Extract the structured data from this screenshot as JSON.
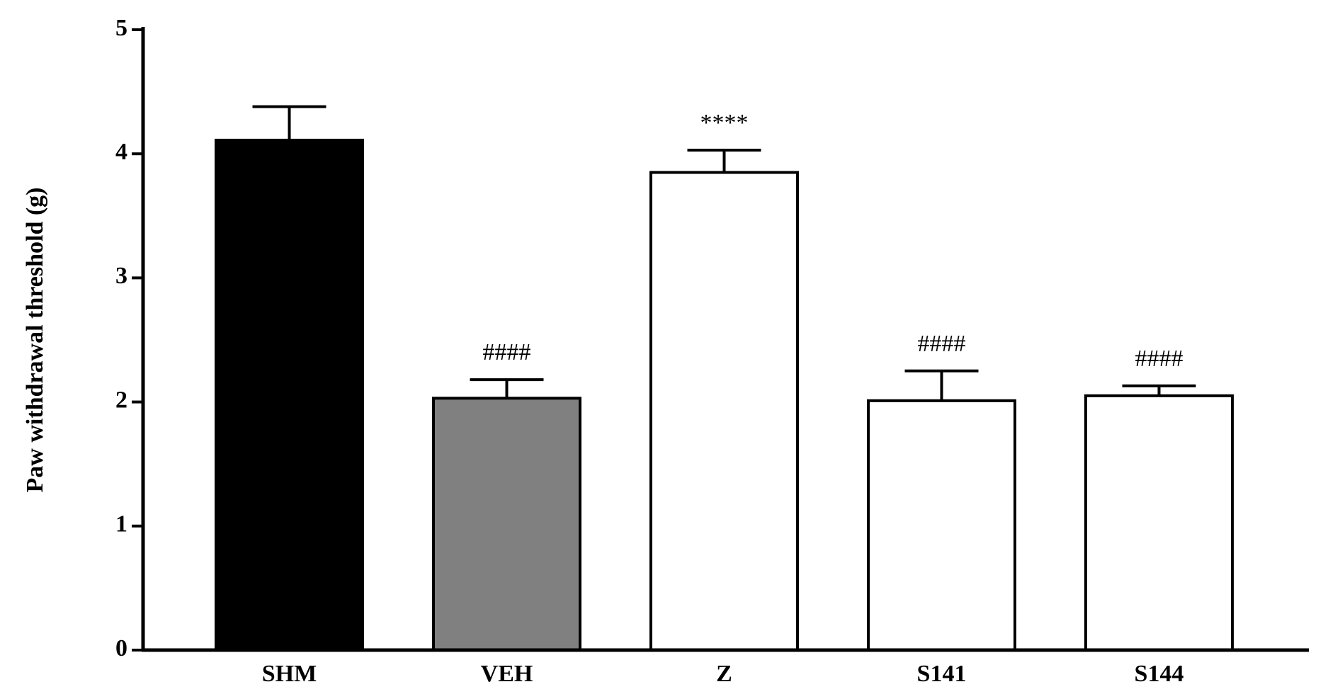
{
  "chart_data": {
    "type": "bar",
    "categories": [
      "SHM",
      "VEH",
      "Z",
      "S141",
      "S144"
    ],
    "values": [
      4.11,
      2.03,
      3.85,
      2.01,
      2.05
    ],
    "errors": [
      0.27,
      0.15,
      0.18,
      0.24,
      0.08
    ],
    "fills": [
      "#000000",
      "#808080",
      "#ffffff",
      "#ffffff",
      "#ffffff"
    ],
    "annotations": [
      "",
      "####",
      "****",
      "####",
      "####"
    ],
    "ylabel": "Paw withdrawal threshold (g)",
    "xlabel": "",
    "ylim": [
      0,
      5
    ],
    "yticks": [
      "0",
      "1",
      "2",
      "3",
      "4",
      "5"
    ],
    "grid": false
  }
}
